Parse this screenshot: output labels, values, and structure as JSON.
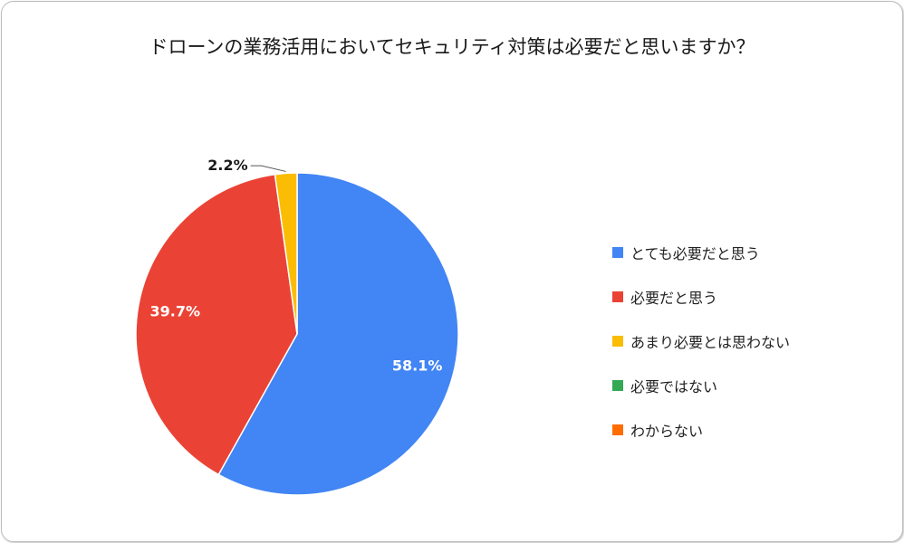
{
  "chart_data": {
    "type": "pie",
    "title": "ドローンの業務活用においてセキュリティ対策は必要だと思いますか？",
    "categories": [
      "とても必要だと思う",
      "必要だと思う",
      "あまり必要とは思わない",
      "必要ではない",
      "わからない"
    ],
    "values": [
      58.1,
      39.7,
      2.2,
      0,
      0
    ],
    "value_labels": [
      "58.1%",
      "39.7%",
      "2.2%",
      "",
      ""
    ],
    "colors": [
      "#4285f4",
      "#ea4335",
      "#fbbc04",
      "#34a853",
      "#ff6d01"
    ],
    "legend_position": "right"
  }
}
